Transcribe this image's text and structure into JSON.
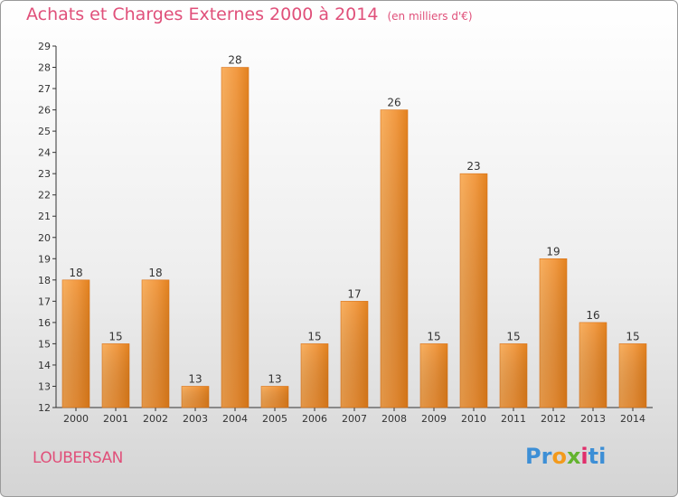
{
  "header": {
    "title": "Achats et Charges Externes 2000 à 2014",
    "unit": "(en milliers d'€)"
  },
  "footer": {
    "commune": "LOUBERSAN",
    "logo_text": [
      "Pr",
      "o",
      "x",
      "i",
      "ti"
    ]
  },
  "colors": {
    "title": "#e0507a",
    "bar_light": "#f7a24d",
    "bar_dark": "#e07818",
    "axis": "#333333"
  },
  "chart_data": {
    "type": "bar",
    "title": "Achats et Charges Externes 2000 à 2014",
    "subtitle": "(en milliers d'€)",
    "categories": [
      "2000",
      "2001",
      "2002",
      "2003",
      "2004",
      "2005",
      "2006",
      "2007",
      "2008",
      "2009",
      "2010",
      "2011",
      "2012",
      "2013",
      "2014"
    ],
    "values": [
      18,
      15,
      18,
      13,
      28,
      13,
      15,
      17,
      26,
      15,
      23,
      15,
      19,
      16,
      15
    ],
    "ylim": [
      12,
      29
    ],
    "yticks": [
      12,
      13,
      14,
      15,
      16,
      17,
      18,
      19,
      20,
      21,
      22,
      23,
      24,
      25,
      26,
      27,
      28,
      29
    ],
    "grid": false,
    "legend": "none"
  }
}
